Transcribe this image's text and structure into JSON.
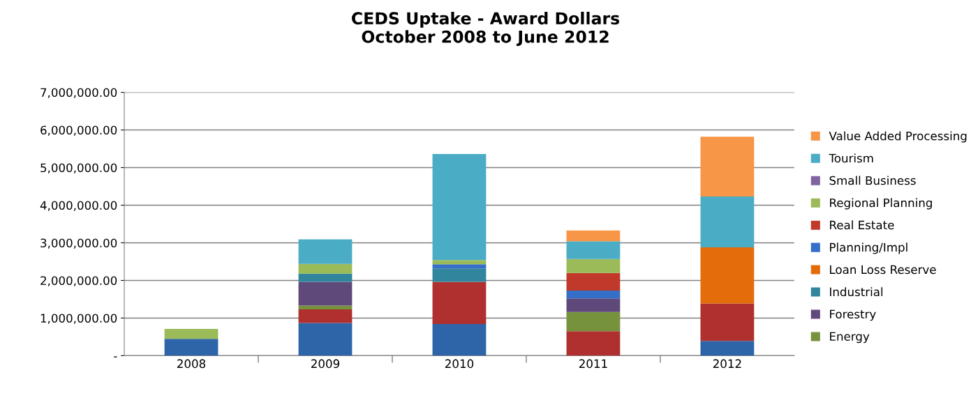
{
  "chart_data": {
    "type": "bar",
    "title": "CEDS Uptake - Award Dollars\nOctober 2008 to June 2012",
    "categories": [
      "2008",
      "2009",
      "2010",
      "2011",
      "2012"
    ],
    "stacked": true,
    "series": [
      {
        "color": "#2e64a8",
        "values": [
          450000,
          870000,
          840000,
          null,
          390000
        ]
      },
      {
        "color": "#b03030",
        "values": [
          null,
          360000,
          1120000,
          650000,
          1000000
        ]
      },
      {
        "name": "Energy",
        "color": "#76923c",
        "values": [
          null,
          100000,
          null,
          510000,
          null
        ]
      },
      {
        "name": "Forestry",
        "color": "#5f497a",
        "values": [
          null,
          630000,
          null,
          360000,
          null
        ]
      },
      {
        "name": "Industrial",
        "color": "#31859c",
        "values": [
          null,
          220000,
          360000,
          null,
          null
        ]
      },
      {
        "name": "Loan Loss Reserve",
        "color": "#e46c0a",
        "values": [
          null,
          null,
          null,
          null,
          1490000
        ]
      },
      {
        "name": "Planning/Impl",
        "color": "#366fc8",
        "values": [
          null,
          null,
          110000,
          210000,
          null
        ]
      },
      {
        "name": "Real Estate",
        "color": "#c0392b",
        "values": [
          null,
          null,
          null,
          470000,
          null
        ]
      },
      {
        "name": "Regional Planning",
        "color": "#9bbb59",
        "values": [
          260000,
          260000,
          110000,
          370000,
          null
        ]
      },
      {
        "name": "Small Business",
        "color": "#8064a2",
        "values": [
          null,
          null,
          null,
          null,
          null
        ]
      },
      {
        "name": "Tourism",
        "color": "#4bacc6",
        "values": [
          null,
          650000,
          2820000,
          470000,
          1350000
        ]
      },
      {
        "name": "Value Added Processing",
        "color": "#f79646",
        "values": [
          null,
          null,
          null,
          290000,
          1590000
        ]
      }
    ],
    "ylim": [
      0,
      7000000
    ],
    "yticks": [
      {
        "value": 0,
        "label": "-"
      },
      {
        "value": 1000000,
        "label": "1,000,000.00"
      },
      {
        "value": 2000000,
        "label": "2,000,000.00"
      },
      {
        "value": 3000000,
        "label": "3,000,000.00"
      },
      {
        "value": 4000000,
        "label": "4,000,000.00"
      },
      {
        "value": 5000000,
        "label": "5,000,000.00"
      },
      {
        "value": 6000000,
        "label": "6,000,000.00"
      },
      {
        "value": 7000000,
        "label": "7,000,000.00"
      }
    ],
    "grid": "y",
    "legend": "right"
  }
}
